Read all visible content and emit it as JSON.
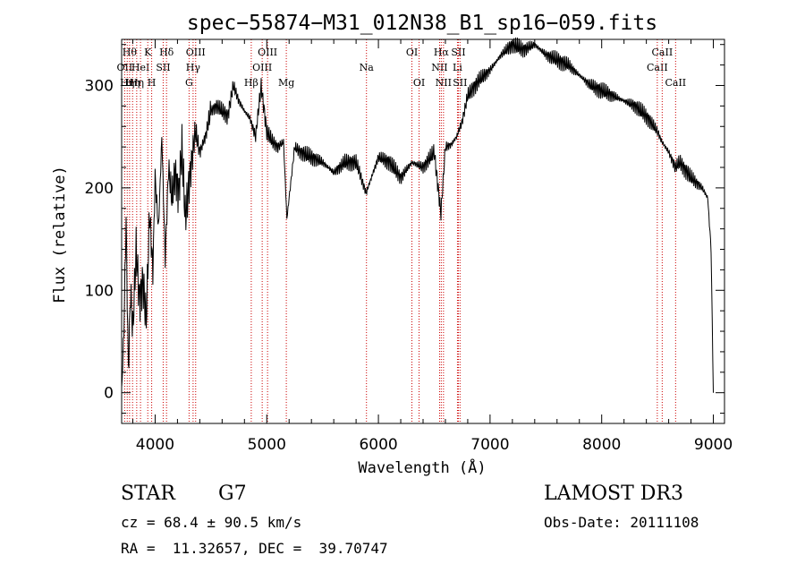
{
  "chart_data": {
    "type": "line",
    "title": "spec−55874−M31_012N38_B1_sp16−059.fits",
    "xlabel": "Wavelength (Å)",
    "ylabel": "Flux (relative)",
    "xlim": [
      3700,
      9100
    ],
    "ylim": [
      -30,
      345
    ],
    "x_ticks": [
      4000,
      5000,
      6000,
      7000,
      8000,
      9000
    ],
    "y_ticks": [
      0,
      100,
      200,
      300
    ],
    "grid": false,
    "series": [
      {
        "name": "spectrum",
        "x": [
          3700,
          3720,
          3740,
          3760,
          3780,
          3800,
          3830,
          3860,
          3890,
          3920,
          3950,
          3980,
          4000,
          4030,
          4060,
          4090,
          4120,
          4150,
          4180,
          4210,
          4240,
          4270,
          4300,
          4330,
          4360,
          4400,
          4450,
          4500,
          4550,
          4600,
          4650,
          4700,
          4750,
          4800,
          4850,
          4900,
          4950,
          5000,
          5050,
          5100,
          5150,
          5180,
          5250,
          5300,
          5400,
          5500,
          5600,
          5700,
          5800,
          5890,
          6000,
          6100,
          6200,
          6300,
          6400,
          6500,
          6560,
          6600,
          6650,
          6700,
          6750,
          6800,
          6900,
          7000,
          7100,
          7200,
          7300,
          7400,
          7500,
          7600,
          7700,
          7800,
          7900,
          8000,
          8100,
          8200,
          8300,
          8400,
          8500,
          8540,
          8600,
          8660,
          8700,
          8800,
          8850,
          8900,
          8950,
          8980,
          9000
        ],
        "values": [
          0,
          60,
          170,
          20,
          100,
          60,
          140,
          90,
          110,
          70,
          175,
          120,
          210,
          160,
          250,
          130,
          220,
          190,
          215,
          195,
          240,
          170,
          200,
          230,
          255,
          235,
          250,
          275,
          280,
          275,
          270,
          300,
          285,
          275,
          268,
          250,
          300,
          255,
          245,
          240,
          245,
          170,
          240,
          235,
          230,
          225,
          215,
          225,
          225,
          195,
          230,
          225,
          210,
          225,
          220,
          235,
          175,
          240,
          242,
          250,
          265,
          290,
          305,
          315,
          330,
          340,
          335,
          340,
          330,
          325,
          320,
          310,
          300,
          295,
          290,
          285,
          280,
          270,
          255,
          245,
          235,
          220,
          225,
          210,
          205,
          200,
          190,
          140,
          0
        ]
      }
    ],
    "lines": [
      {
        "x": 3727,
        "labels": [
          "OII"
        ],
        "rows": [
          2
        ]
      },
      {
        "x": 3750,
        "labels": [
          "Hη"
        ],
        "rows": [
          3
        ]
      },
      {
        "x": 3771,
        "labels": [
          "Hθ"
        ],
        "rows": [
          1
        ]
      },
      {
        "x": 3798,
        "labels": [
          "Hη"
        ],
        "rows": [
          3
        ]
      },
      {
        "x": 3835,
        "labels": [
          "Hη"
        ],
        "rows": [
          3
        ]
      },
      {
        "x": 3869,
        "labels": [
          "HeI"
        ],
        "rows": [
          2
        ]
      },
      {
        "x": 3934,
        "labels": [
          "K"
        ],
        "rows": [
          1
        ]
      },
      {
        "x": 3969,
        "labels": [
          "H"
        ],
        "rows": [
          3
        ]
      },
      {
        "x": 4072,
        "labels": [
          "SII"
        ],
        "rows": [
          2
        ]
      },
      {
        "x": 4102,
        "labels": [
          "Hδ"
        ],
        "rows": [
          1
        ]
      },
      {
        "x": 4304,
        "labels": [
          "G"
        ],
        "rows": [
          3
        ]
      },
      {
        "x": 4340,
        "labels": [
          "Hγ"
        ],
        "rows": [
          2
        ]
      },
      {
        "x": 4363,
        "labels": [
          "OIII"
        ],
        "rows": [
          1
        ]
      },
      {
        "x": 4861,
        "labels": [
          "Hβ"
        ],
        "rows": [
          3
        ]
      },
      {
        "x": 4959,
        "labels": [
          "OIII"
        ],
        "rows": [
          2
        ]
      },
      {
        "x": 5007,
        "labels": [
          "OIII"
        ],
        "rows": [
          1
        ]
      },
      {
        "x": 5175,
        "labels": [
          "Mg"
        ],
        "rows": [
          3
        ]
      },
      {
        "x": 5893,
        "labels": [
          "Na"
        ],
        "rows": [
          2
        ]
      },
      {
        "x": 6300,
        "labels": [
          "OI"
        ],
        "rows": [
          1
        ]
      },
      {
        "x": 6364,
        "labels": [
          "OI"
        ],
        "rows": [
          3
        ]
      },
      {
        "x": 6548,
        "labels": [
          "NII"
        ],
        "rows": [
          2
        ]
      },
      {
        "x": 6563,
        "labels": [
          "Hα"
        ],
        "rows": [
          1
        ]
      },
      {
        "x": 6583,
        "labels": [
          "NII"
        ],
        "rows": [
          3
        ]
      },
      {
        "x": 6708,
        "labels": [
          "Li"
        ],
        "rows": [
          2
        ]
      },
      {
        "x": 6716,
        "labels": [
          "SII"
        ],
        "rows": [
          1
        ]
      },
      {
        "x": 6731,
        "labels": [
          "SII"
        ],
        "rows": [
          3
        ]
      },
      {
        "x": 8498,
        "labels": [
          "CaII"
        ],
        "rows": [
          2
        ]
      },
      {
        "x": 8542,
        "labels": [
          "CaII"
        ],
        "rows": [
          1
        ]
      },
      {
        "x": 8662,
        "labels": [
          "CaII"
        ],
        "rows": [
          3
        ]
      }
    ]
  },
  "info": {
    "object_class": "STAR",
    "subclass": "G7",
    "survey": "LAMOST DR3",
    "redshift_line": "cz = 68.4 ± 90.5 km/s",
    "obs_date_line": "Obs-Date: 20111108",
    "coords_line": "RA =  11.32657, DEC =  39.70747"
  },
  "colors": {
    "spectrum": "#000000",
    "line_markers": "#cc0000",
    "axes": "#000000"
  }
}
